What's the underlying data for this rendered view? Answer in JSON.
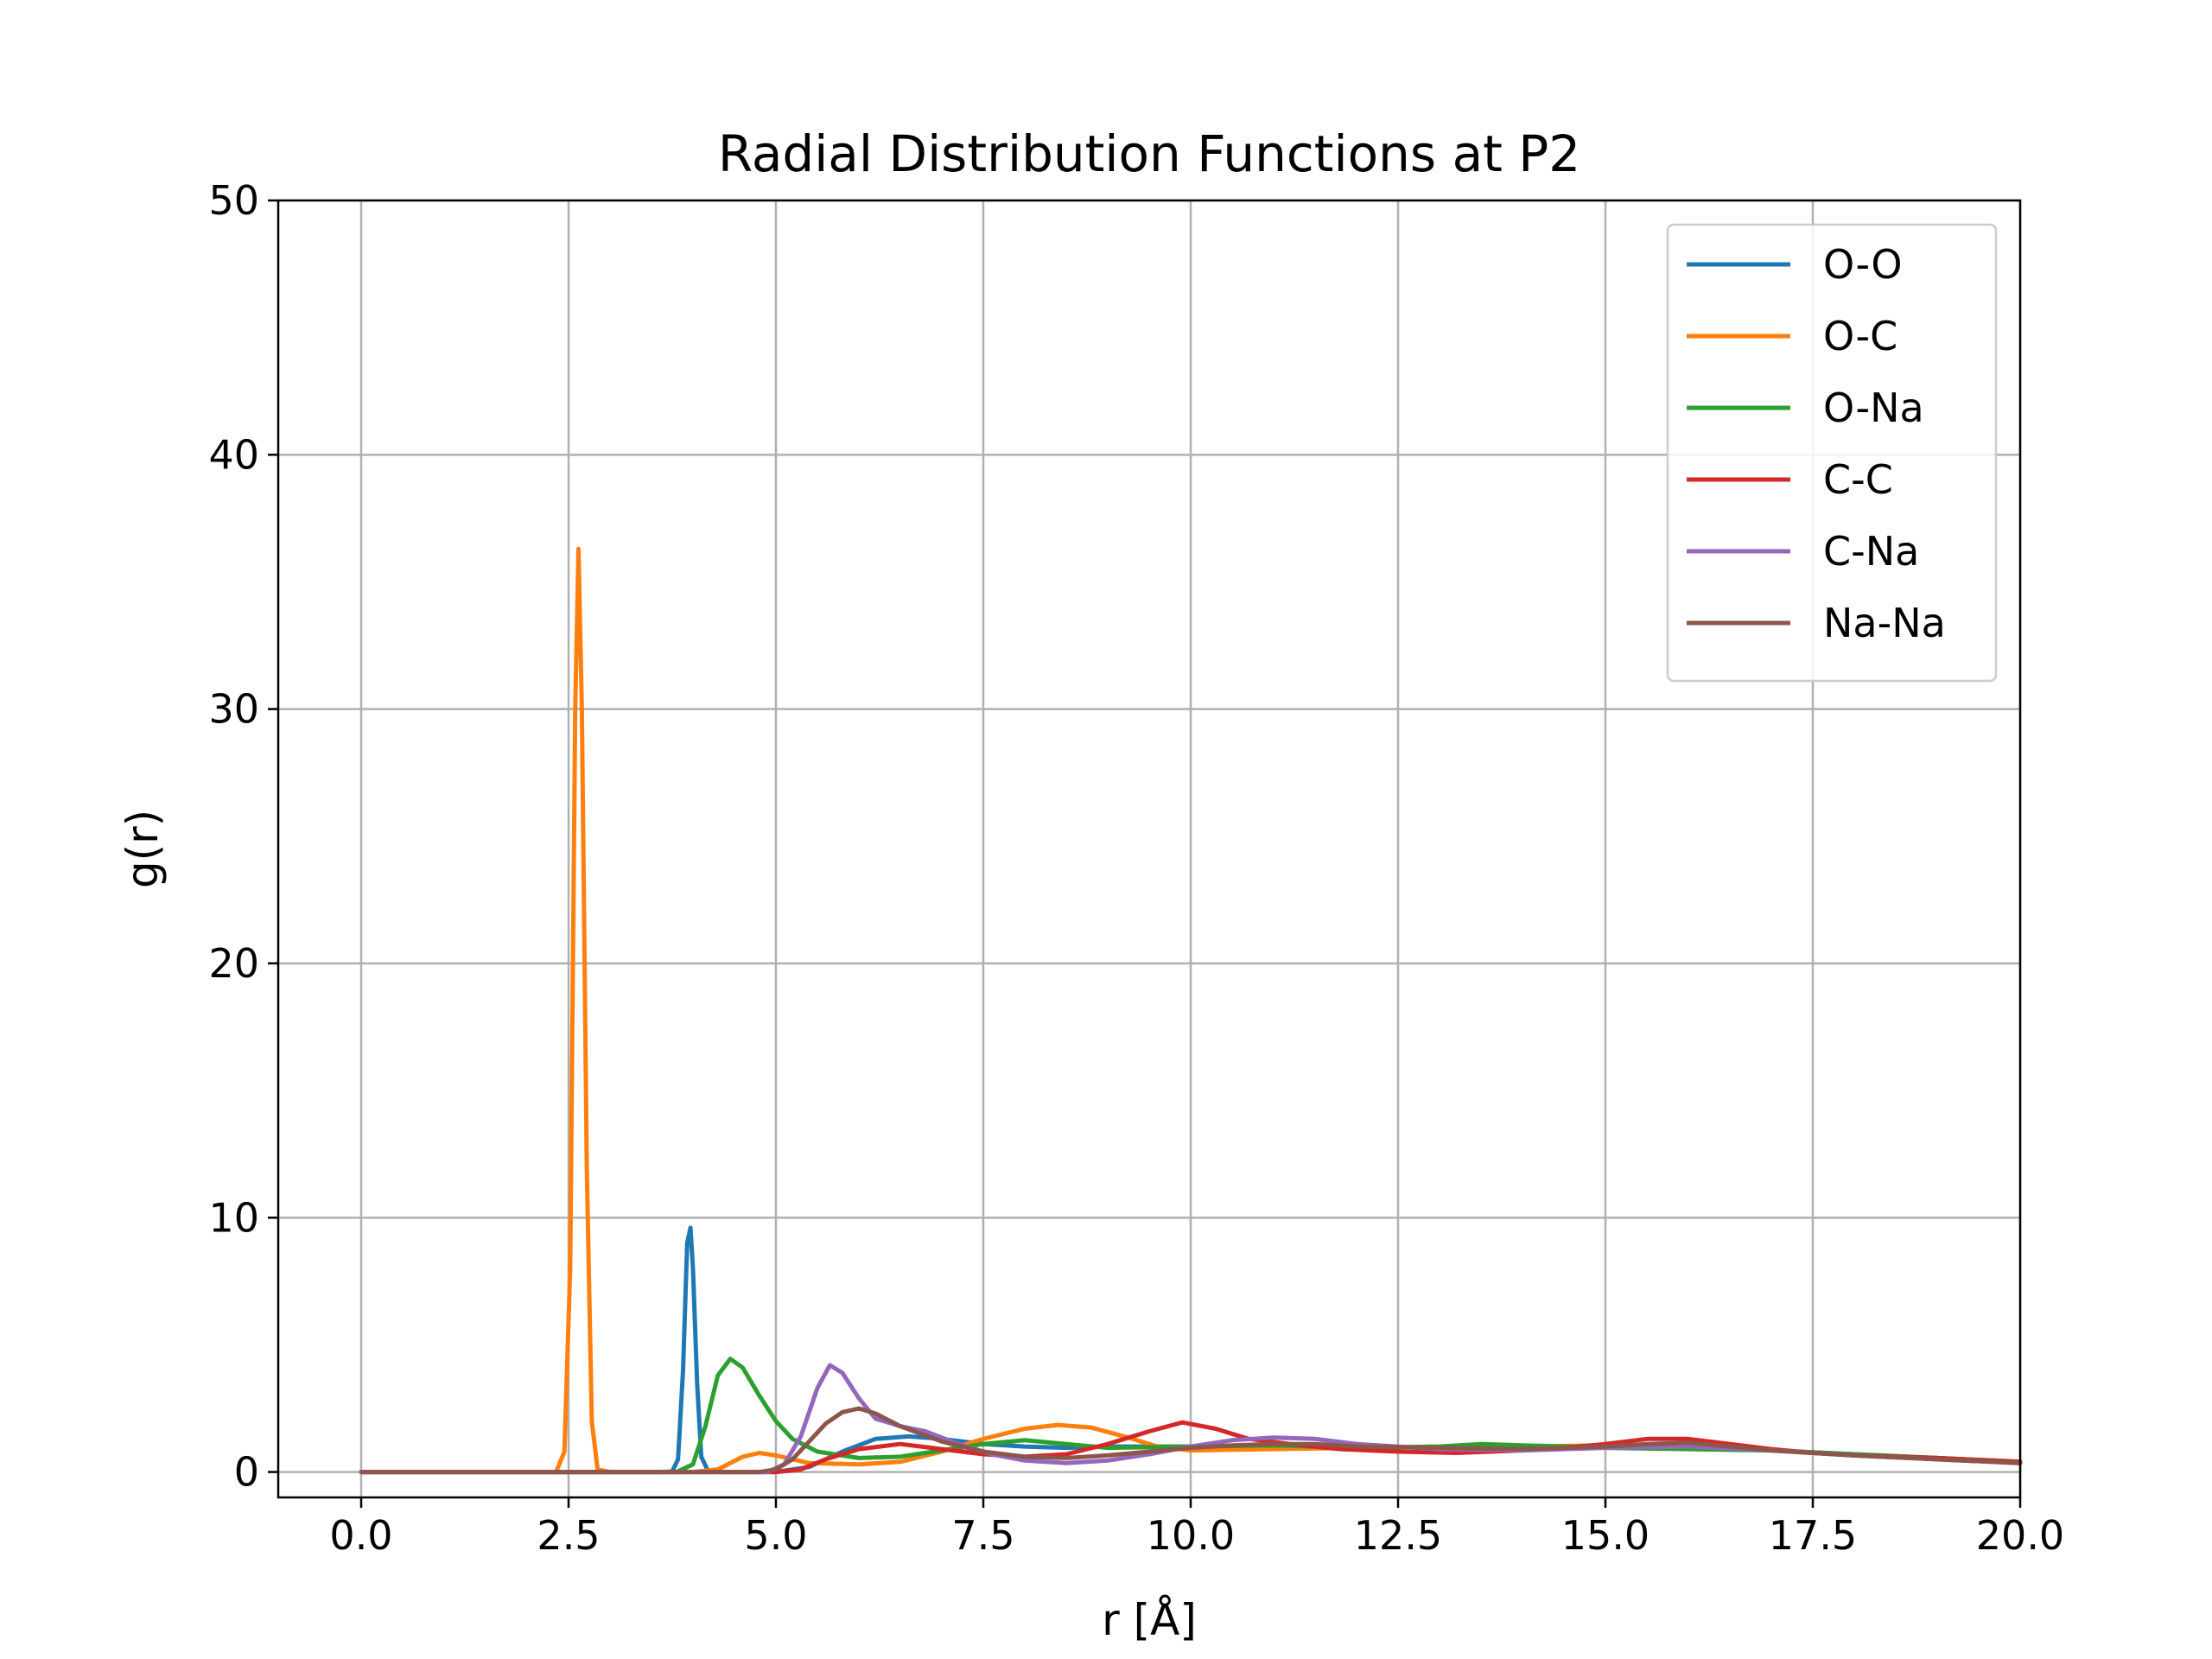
{
  "chart_data": {
    "type": "line",
    "title": "Radial Distribution Functions at P2",
    "xlabel": "r [Å]",
    "ylabel": "g(r)",
    "xlim": [
      -1.0,
      20.0
    ],
    "ylim": [
      -1.0,
      50.0
    ],
    "xticks": [
      0.0,
      2.5,
      5.0,
      7.5,
      10.0,
      12.5,
      15.0,
      17.5,
      20.0
    ],
    "xtick_labels": [
      "0.0",
      "2.5",
      "5.0",
      "7.5",
      "10.0",
      "12.5",
      "15.0",
      "17.5",
      "20.0"
    ],
    "yticks": [
      0,
      10,
      20,
      30,
      40,
      50
    ],
    "ytick_labels": [
      "0",
      "10",
      "20",
      "30",
      "40",
      "50"
    ],
    "grid": true,
    "legend_position": "top-right",
    "series": [
      {
        "name": "O-O",
        "color": "#1f77b4",
        "points": [
          [
            0,
            0
          ],
          [
            3.6,
            0
          ],
          [
            3.75,
            0.02
          ],
          [
            3.82,
            0.5
          ],
          [
            3.88,
            4
          ],
          [
            3.93,
            9
          ],
          [
            3.97,
            9.6
          ],
          [
            4.0,
            8
          ],
          [
            4.05,
            3.5
          ],
          [
            4.1,
            0.6
          ],
          [
            4.18,
            0.05
          ],
          [
            4.3,
            0
          ],
          [
            5.0,
            0
          ],
          [
            5.4,
            0.2
          ],
          [
            5.8,
            0.8
          ],
          [
            6.2,
            1.3
          ],
          [
            6.6,
            1.4
          ],
          [
            7.0,
            1.3
          ],
          [
            7.5,
            1.1
          ],
          [
            8.0,
            1.0
          ],
          [
            8.5,
            0.95
          ],
          [
            9.0,
            1.0
          ],
          [
            10.0,
            1.0
          ],
          [
            11.0,
            1.05
          ],
          [
            12.0,
            1.0
          ],
          [
            13.0,
            0.95
          ],
          [
            14.0,
            0.95
          ],
          [
            15.0,
            1.0
          ],
          [
            16.0,
            0.95
          ],
          [
            17.0,
            0.85
          ],
          [
            18.0,
            0.7
          ],
          [
            19.0,
            0.55
          ],
          [
            20.0,
            0.4
          ]
        ]
      },
      {
        "name": "O-C",
        "color": "#ff7f0e",
        "points": [
          [
            0,
            0
          ],
          [
            2.35,
            0
          ],
          [
            2.45,
            0.8
          ],
          [
            2.52,
            8
          ],
          [
            2.58,
            30
          ],
          [
            2.62,
            36.3
          ],
          [
            2.66,
            30
          ],
          [
            2.72,
            12
          ],
          [
            2.78,
            2
          ],
          [
            2.85,
            0.1
          ],
          [
            3.0,
            0
          ],
          [
            4.0,
            0
          ],
          [
            4.3,
            0.1
          ],
          [
            4.6,
            0.6
          ],
          [
            4.8,
            0.75
          ],
          [
            5.0,
            0.65
          ],
          [
            5.4,
            0.35
          ],
          [
            6.0,
            0.3
          ],
          [
            6.5,
            0.4
          ],
          [
            7.0,
            0.8
          ],
          [
            7.5,
            1.3
          ],
          [
            8.0,
            1.7
          ],
          [
            8.4,
            1.85
          ],
          [
            8.8,
            1.75
          ],
          [
            9.2,
            1.4
          ],
          [
            9.6,
            1.0
          ],
          [
            10.0,
            0.85
          ],
          [
            11.0,
            0.9
          ],
          [
            12.0,
            0.95
          ],
          [
            13.0,
            1.0
          ],
          [
            14.0,
            1.0
          ],
          [
            15.0,
            1.05
          ],
          [
            16.0,
            1.0
          ],
          [
            17.0,
            0.85
          ],
          [
            18.0,
            0.65
          ],
          [
            19.0,
            0.5
          ],
          [
            20.0,
            0.35
          ]
        ]
      },
      {
        "name": "O-Na",
        "color": "#2ca02c",
        "points": [
          [
            0,
            0
          ],
          [
            3.8,
            0
          ],
          [
            4.0,
            0.3
          ],
          [
            4.15,
            1.8
          ],
          [
            4.3,
            3.8
          ],
          [
            4.45,
            4.45
          ],
          [
            4.6,
            4.1
          ],
          [
            4.8,
            3.0
          ],
          [
            5.0,
            2.0
          ],
          [
            5.2,
            1.3
          ],
          [
            5.5,
            0.8
          ],
          [
            6.0,
            0.55
          ],
          [
            6.5,
            0.6
          ],
          [
            7.0,
            0.85
          ],
          [
            7.5,
            1.1
          ],
          [
            8.0,
            1.25
          ],
          [
            8.5,
            1.1
          ],
          [
            9.0,
            0.95
          ],
          [
            10.0,
            1.0
          ],
          [
            11.0,
            1.05
          ],
          [
            12.0,
            0.95
          ],
          [
            13.0,
            1.0
          ],
          [
            13.5,
            1.1
          ],
          [
            14.0,
            1.05
          ],
          [
            15.0,
            0.95
          ],
          [
            16.0,
            0.9
          ],
          [
            17.0,
            0.85
          ],
          [
            18.0,
            0.7
          ],
          [
            19.0,
            0.55
          ],
          [
            20.0,
            0.4
          ]
        ]
      },
      {
        "name": "C-C",
        "color": "#d62728",
        "points": [
          [
            0,
            0
          ],
          [
            5.0,
            0
          ],
          [
            5.3,
            0.1
          ],
          [
            5.6,
            0.5
          ],
          [
            6.0,
            0.9
          ],
          [
            6.5,
            1.1
          ],
          [
            7.0,
            0.9
          ],
          [
            7.5,
            0.7
          ],
          [
            8.0,
            0.6
          ],
          [
            8.5,
            0.7
          ],
          [
            9.0,
            1.1
          ],
          [
            9.5,
            1.6
          ],
          [
            9.9,
            1.95
          ],
          [
            10.3,
            1.7
          ],
          [
            10.7,
            1.3
          ],
          [
            11.2,
            1.1
          ],
          [
            11.8,
            0.9
          ],
          [
            12.5,
            0.8
          ],
          [
            13.2,
            0.75
          ],
          [
            14.0,
            0.85
          ],
          [
            14.5,
            0.95
          ],
          [
            15.0,
            1.1
          ],
          [
            15.5,
            1.3
          ],
          [
            16.0,
            1.3
          ],
          [
            16.5,
            1.1
          ],
          [
            17.0,
            0.9
          ],
          [
            17.5,
            0.75
          ],
          [
            18.0,
            0.65
          ],
          [
            19.0,
            0.55
          ],
          [
            20.0,
            0.4
          ]
        ]
      },
      {
        "name": "C-Na",
        "color": "#9467bd",
        "points": [
          [
            0,
            0
          ],
          [
            4.9,
            0
          ],
          [
            5.1,
            0.3
          ],
          [
            5.3,
            1.4
          ],
          [
            5.5,
            3.3
          ],
          [
            5.65,
            4.2
          ],
          [
            5.8,
            3.9
          ],
          [
            6.0,
            2.9
          ],
          [
            6.2,
            2.1
          ],
          [
            6.5,
            1.8
          ],
          [
            6.8,
            1.6
          ],
          [
            7.2,
            1.1
          ],
          [
            7.6,
            0.7
          ],
          [
            8.0,
            0.45
          ],
          [
            8.5,
            0.35
          ],
          [
            9.0,
            0.45
          ],
          [
            9.5,
            0.7
          ],
          [
            10.0,
            1.0
          ],
          [
            10.5,
            1.25
          ],
          [
            11.0,
            1.35
          ],
          [
            11.5,
            1.3
          ],
          [
            12.0,
            1.1
          ],
          [
            13.0,
            0.9
          ],
          [
            14.0,
            0.85
          ],
          [
            15.0,
            0.95
          ],
          [
            16.0,
            1.0
          ],
          [
            17.0,
            0.85
          ],
          [
            18.0,
            0.65
          ],
          [
            19.0,
            0.5
          ],
          [
            20.0,
            0.35
          ]
        ]
      },
      {
        "name": "Na-Na",
        "color": "#8c564b",
        "points": [
          [
            0,
            0
          ],
          [
            4.8,
            0
          ],
          [
            5.0,
            0.1
          ],
          [
            5.2,
            0.5
          ],
          [
            5.4,
            1.2
          ],
          [
            5.6,
            1.9
          ],
          [
            5.8,
            2.35
          ],
          [
            6.0,
            2.5
          ],
          [
            6.2,
            2.3
          ],
          [
            6.5,
            1.8
          ],
          [
            7.0,
            1.2
          ],
          [
            7.5,
            0.8
          ],
          [
            8.0,
            0.6
          ],
          [
            8.5,
            0.55
          ],
          [
            9.0,
            0.65
          ],
          [
            9.5,
            0.8
          ],
          [
            10.0,
            0.95
          ],
          [
            10.5,
            1.05
          ],
          [
            11.0,
            1.1
          ],
          [
            11.5,
            1.1
          ],
          [
            12.0,
            1.0
          ],
          [
            13.0,
            0.95
          ],
          [
            14.0,
            0.9
          ],
          [
            15.0,
            1.0
          ],
          [
            15.5,
            1.1
          ],
          [
            16.0,
            1.15
          ],
          [
            16.5,
            1.0
          ],
          [
            17.0,
            0.85
          ],
          [
            18.0,
            0.65
          ],
          [
            19.0,
            0.5
          ],
          [
            20.0,
            0.35
          ]
        ]
      }
    ]
  }
}
